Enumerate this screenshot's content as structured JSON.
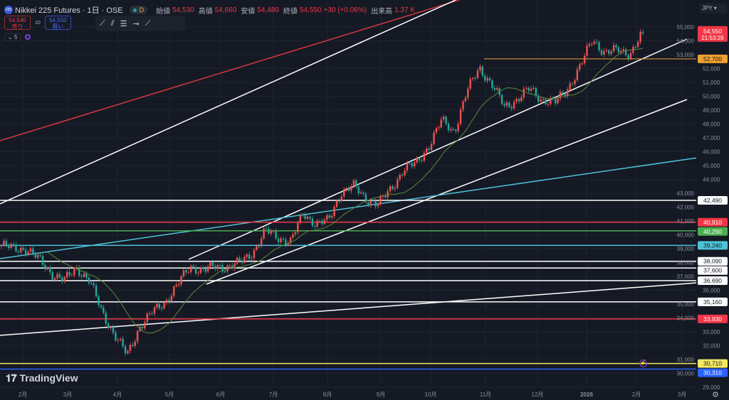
{
  "header": {
    "symbol": "Nikkei 225 Futures · 1日 · OSE",
    "logo": "225",
    "interval_badge": "D",
    "open_label": "始値",
    "open": "54,530",
    "high_label": "高値",
    "high": "54,660",
    "low_label": "安値",
    "low": "54,480",
    "close_label": "終値",
    "close": "54,550",
    "change": "+30 (+0.06%)",
    "volume_label": "出来高",
    "volume": "1.37 K"
  },
  "trade": {
    "sell_price": "54,540",
    "sell_label": "売り",
    "qty": "10",
    "buy_price": "54,550",
    "buy_label": "買い"
  },
  "indicator_toggle": "5",
  "currency": "JPY",
  "brand": "TradingView",
  "colors": {
    "up": "#ef5350",
    "down": "#26a69a",
    "ma": "#5b8a3c",
    "bg": "#151924"
  },
  "chart_data": {
    "type": "candlestick",
    "title": "Nikkei 225 Futures 1D",
    "ylim": [
      28600,
      56300
    ],
    "y_ticks": [
      55000,
      54000,
      53000,
      52000,
      51000,
      50000,
      49000,
      48000,
      47000,
      46000,
      45000,
      44000,
      43000,
      42000,
      41000,
      40000,
      39000,
      38000,
      37000,
      36000,
      35000,
      34000,
      33000,
      32000,
      31000,
      30000,
      29000
    ],
    "x_ticks": [
      "2月",
      "3月",
      "4月",
      "5月",
      "6月",
      "7月",
      "8月",
      "9月",
      "10月",
      "11月",
      "12月",
      "2026",
      "2月",
      "3月"
    ],
    "close_path": [
      39260,
      39000,
      39000,
      38200,
      37200,
      36700,
      37600,
      36700,
      34400,
      32800,
      31300,
      33400,
      34400,
      35150,
      36400,
      37700,
      37450,
      37700,
      37700,
      38000,
      38750,
      40300,
      39800,
      39500,
      41550,
      40800,
      41000,
      43100,
      43500,
      42600,
      42200,
      43350,
      44750,
      45150,
      46450,
      48250,
      47450,
      50300,
      52100,
      50800,
      49250,
      49750,
      50550,
      49750,
      49500,
      50550,
      52100,
      54150,
      53100,
      53350,
      53100,
      54550
    ],
    "last_price": "54,550",
    "countdown": "21:53:29",
    "levels": [
      {
        "price": 52700,
        "label": "52,700",
        "color": "#f0a030"
      },
      {
        "price": 42490,
        "label": "42,490",
        "color": "#ffffff"
      },
      {
        "price": 40910,
        "label": "40,910",
        "color": "#f23645"
      },
      {
        "price": 40290,
        "label": "40,290",
        "color": "#4caf50"
      },
      {
        "price": 39240,
        "label": "39,240",
        "color": "#4dc3d8"
      },
      {
        "price": 38090,
        "label": "38,090",
        "color": "#ffffff"
      },
      {
        "price": 37600,
        "label": "37,600",
        "color": "#ffffff"
      },
      {
        "price": 36690,
        "label": "36,690",
        "color": "#ffffff"
      },
      {
        "price": 35160,
        "label": "35,160",
        "color": "#ffffff"
      },
      {
        "price": 33930,
        "label": "33,930",
        "color": "#f23645"
      },
      {
        "price": 30710,
        "label": "30,710",
        "color": "#f5e663"
      },
      {
        "price": 30310,
        "label": "30,310",
        "color": "#2962ff"
      }
    ]
  }
}
